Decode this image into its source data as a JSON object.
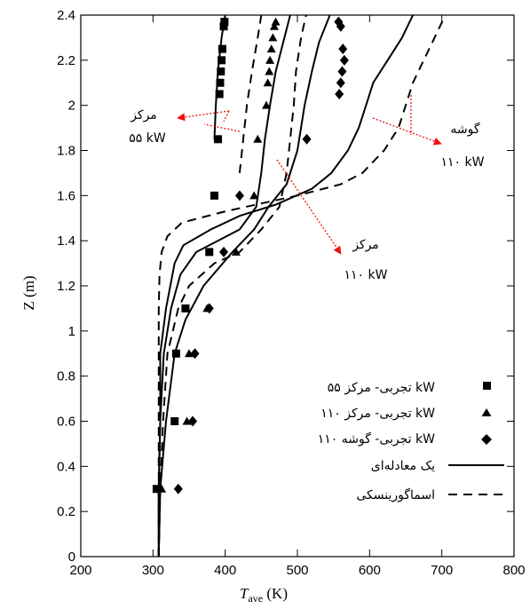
{
  "chart_data": {
    "type": "line",
    "xlabel": "T",
    "xlabel_sub": "ave",
    "xlabel_unit": " (K)",
    "ylabel": "Z (m)",
    "xlim": [
      200,
      800
    ],
    "ylim": [
      0,
      2.4
    ],
    "xticks": [
      "200",
      "300",
      "400",
      "500",
      "600",
      "700",
      "800"
    ],
    "yticks": [
      "0",
      "0.2",
      "0.4",
      "0.6",
      "0.8",
      "1",
      "1.2",
      "1.4",
      "1.6",
      "1.8",
      "2",
      "2.2",
      "2.4"
    ],
    "grid": false,
    "legend_position": "bottom-right",
    "legend": [
      {
        "label": "تجربی- مرکز ۵۵ kW",
        "style": "square"
      },
      {
        "label": "تجربی- مرکز ۱۱۰ kW",
        "style": "triangle"
      },
      {
        "label": "تجربی- گوشه ۱۱۰ kW",
        "style": "diamond"
      },
      {
        "label": "یک معادله‌ای",
        "style": "solid"
      },
      {
        "label": "اسماگورینسکی",
        "style": "dashed"
      }
    ],
    "annotations": [
      {
        "line1": "مرکز",
        "line2": "۵۵ kW"
      },
      {
        "line1": "گوشه",
        "line2": "۱۱۰ kW"
      },
      {
        "line1": "مرکز",
        "line2": "۱۱۰ kW"
      }
    ],
    "experimental": [
      {
        "marker": "square",
        "points": [
          [
            305,
            0.3
          ],
          [
            330,
            0.6
          ],
          [
            332,
            0.9
          ],
          [
            345,
            1.1
          ],
          [
            378,
            1.35
          ],
          [
            385,
            1.6
          ],
          [
            390,
            1.85
          ],
          [
            392,
            2.05
          ],
          [
            393,
            2.1
          ],
          [
            394,
            2.15
          ],
          [
            395,
            2.2
          ],
          [
            396,
            2.25
          ],
          [
            398,
            2.35
          ],
          [
            399,
            2.37
          ]
        ]
      },
      {
        "marker": "triangle",
        "points": [
          [
            312,
            0.3
          ],
          [
            347,
            0.6
          ],
          [
            350,
            0.9
          ],
          [
            375,
            1.1
          ],
          [
            415,
            1.35
          ],
          [
            440,
            1.6
          ],
          [
            445,
            1.85
          ],
          [
            457,
            2.0
          ],
          [
            459,
            2.1
          ],
          [
            461,
            2.15
          ],
          [
            462,
            2.2
          ],
          [
            464,
            2.25
          ],
          [
            466,
            2.3
          ],
          [
            468,
            2.35
          ],
          [
            470,
            2.37
          ]
        ]
      },
      {
        "marker": "diamond",
        "points": [
          [
            335,
            0.3
          ],
          [
            355,
            0.6
          ],
          [
            358,
            0.9
          ],
          [
            378,
            1.1
          ],
          [
            398,
            1.35
          ],
          [
            420,
            1.6
          ],
          [
            513,
            1.85
          ],
          [
            558,
            2.05
          ],
          [
            560,
            2.1
          ],
          [
            562,
            2.15
          ],
          [
            565,
            2.2
          ],
          [
            563,
            2.25
          ],
          [
            560,
            2.35
          ],
          [
            557,
            2.37
          ]
        ]
      }
    ],
    "series": [
      {
        "style": "solid",
        "points": [
          [
            308,
            0
          ],
          [
            308,
            0.3
          ],
          [
            310,
            0.6
          ],
          [
            310,
            0.9
          ],
          [
            318,
            1.1
          ],
          [
            330,
            1.3
          ],
          [
            342,
            1.38
          ],
          [
            380,
            1.45
          ],
          [
            420,
            1.51
          ],
          [
            470,
            1.56
          ],
          [
            520,
            1.63
          ],
          [
            547,
            1.7
          ],
          [
            570,
            1.8
          ],
          [
            585,
            1.9
          ],
          [
            595,
            2.0
          ],
          [
            605,
            2.1
          ],
          [
            625,
            2.2
          ],
          [
            645,
            2.3
          ],
          [
            660,
            2.4
          ]
        ]
      },
      {
        "style": "solid",
        "points": [
          [
            308,
            0
          ],
          [
            308,
            0.3
          ],
          [
            310,
            0.6
          ],
          [
            315,
            0.9
          ],
          [
            325,
            1.1
          ],
          [
            338,
            1.25
          ],
          [
            360,
            1.35
          ],
          [
            420,
            1.45
          ],
          [
            443,
            1.55
          ],
          [
            450,
            1.7
          ],
          [
            455,
            1.85
          ],
          [
            462,
            2.0
          ],
          [
            470,
            2.15
          ],
          [
            482,
            2.3
          ],
          [
            490,
            2.4
          ]
        ]
      },
      {
        "style": "solid",
        "points": [
          [
            308,
            0
          ],
          [
            310,
            0.3
          ],
          [
            318,
            0.6
          ],
          [
            330,
            0.9
          ],
          [
            345,
            1.05
          ],
          [
            370,
            1.2
          ],
          [
            410,
            1.35
          ],
          [
            440,
            1.45
          ],
          [
            460,
            1.55
          ],
          [
            485,
            1.65
          ],
          [
            500,
            1.8
          ],
          [
            510,
            2.0
          ],
          [
            520,
            2.15
          ],
          [
            530,
            2.28
          ],
          [
            545,
            2.4
          ]
        ]
      },
      {
        "style": "solid",
        "points": [
          [
            385,
            1.85
          ],
          [
            387,
            2.0
          ],
          [
            390,
            2.15
          ],
          [
            395,
            2.3
          ],
          [
            400,
            2.4
          ]
        ]
      },
      {
        "style": "dashed",
        "points": [
          [
            308,
            0
          ],
          [
            308,
            0.4
          ],
          [
            308,
            0.8
          ],
          [
            308,
            1.1
          ],
          [
            309,
            1.25
          ],
          [
            312,
            1.35
          ],
          [
            320,
            1.42
          ],
          [
            340,
            1.48
          ],
          [
            400,
            1.53
          ],
          [
            500,
            1.6
          ],
          [
            560,
            1.65
          ],
          [
            590,
            1.7
          ],
          [
            620,
            1.8
          ],
          [
            640,
            1.9
          ],
          [
            650,
            2.0
          ],
          [
            660,
            2.1
          ],
          [
            675,
            2.2
          ],
          [
            690,
            2.3
          ],
          [
            705,
            2.4
          ]
        ]
      },
      {
        "style": "dashed",
        "points": [
          [
            308,
            0
          ],
          [
            310,
            0.3
          ],
          [
            314,
            0.6
          ],
          [
            320,
            0.9
          ],
          [
            335,
            1.1
          ],
          [
            350,
            1.2
          ],
          [
            385,
            1.3
          ],
          [
            420,
            1.35
          ],
          [
            450,
            1.45
          ],
          [
            475,
            1.55
          ],
          [
            485,
            1.7
          ],
          [
            490,
            1.85
          ],
          [
            495,
            2.0
          ],
          [
            498,
            2.15
          ],
          [
            505,
            2.3
          ],
          [
            512,
            2.4
          ]
        ]
      },
      {
        "style": "dashed",
        "points": [
          [
            420,
            1.7
          ],
          [
            425,
            1.85
          ],
          [
            430,
            2.0
          ],
          [
            437,
            2.15
          ],
          [
            445,
            2.3
          ],
          [
            450,
            2.4
          ]
        ]
      }
    ]
  }
}
